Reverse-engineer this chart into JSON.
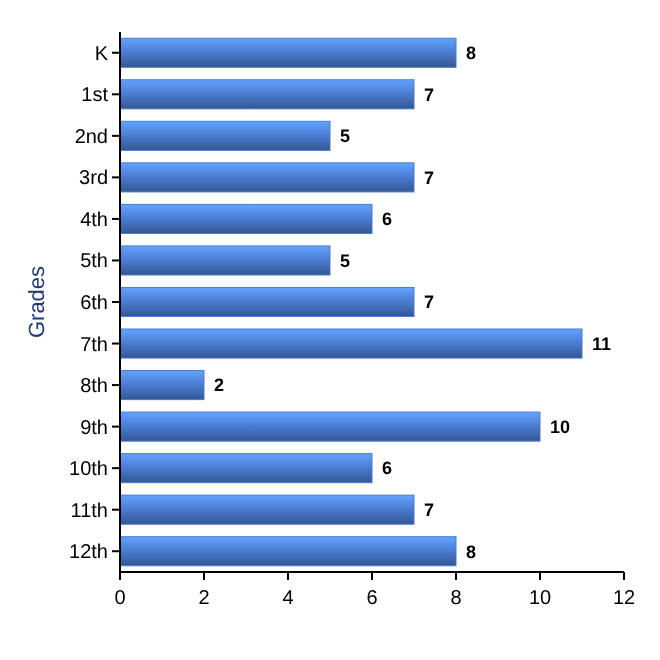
{
  "chart_data": {
    "type": "bar",
    "orientation": "horizontal",
    "ylabel": "Grades",
    "categories": [
      "K",
      "1st",
      "2nd",
      "3rd",
      "4th",
      "5th",
      "6th",
      "7th",
      "8th",
      "9th",
      "10th",
      "11th",
      "12th"
    ],
    "values": [
      8,
      7,
      5,
      7,
      6,
      5,
      7,
      11,
      2,
      10,
      6,
      7,
      8
    ],
    "color": "#4a7bd0",
    "xlim": [
      0,
      12
    ],
    "xticks": [
      0,
      2,
      4,
      6,
      8,
      10,
      12
    ],
    "data_labels": true,
    "grid": false
  }
}
